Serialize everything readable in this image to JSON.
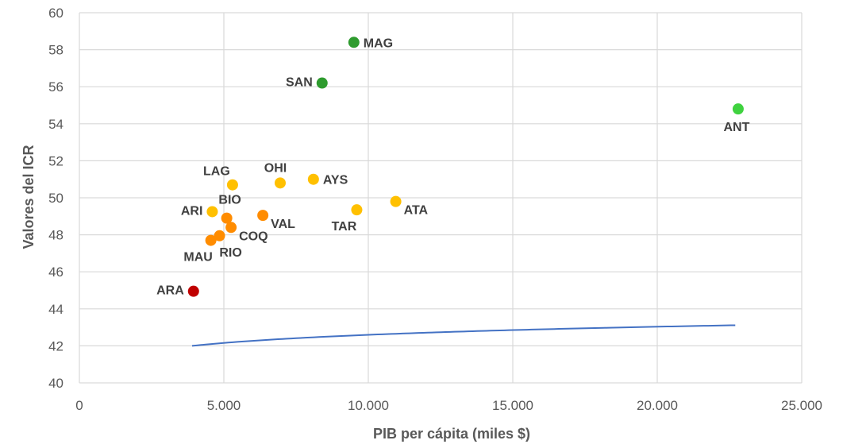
{
  "chart_data": {
    "type": "scatter",
    "xlabel": "PIB per cápita (miles $)",
    "ylabel": "Valores del ICR",
    "xlim": [
      0,
      25000
    ],
    "ylim": [
      40,
      60
    ],
    "x_ticks": [
      0,
      5000,
      10000,
      15000,
      20000,
      25000
    ],
    "x_tick_labels": [
      "0",
      "5.000",
      "10.000",
      "15.000",
      "20.000",
      "25.000"
    ],
    "y_ticks": [
      40,
      42,
      44,
      46,
      48,
      50,
      52,
      54,
      56,
      58,
      60
    ],
    "y_tick_labels": [
      "40",
      "42",
      "44",
      "46",
      "48",
      "50",
      "52",
      "54",
      "56",
      "58",
      "60"
    ],
    "grid": true,
    "legend": "none",
    "colors": {
      "dark_green": "#2e9b2e",
      "light_green": "#3fd23f",
      "yellow": "#ffc000",
      "orange": "#ff8c00",
      "red": "#c00000",
      "trend": "#4472c4"
    },
    "points": [
      {
        "label": "MAG",
        "x": 9500,
        "y": 58.4,
        "color": "dark_green",
        "label_pos": "right"
      },
      {
        "label": "SAN",
        "x": 8400,
        "y": 56.2,
        "color": "dark_green",
        "label_pos": "left"
      },
      {
        "label": "ANT",
        "x": 22800,
        "y": 54.8,
        "color": "light_green",
        "label_pos": "below"
      },
      {
        "label": "LAG",
        "x": 5300,
        "y": 50.7,
        "color": "yellow",
        "label_pos": "above-left"
      },
      {
        "label": "OHI",
        "x": 6950,
        "y": 50.8,
        "color": "yellow",
        "label_pos": "above"
      },
      {
        "label": "AYS",
        "x": 8100,
        "y": 51.0,
        "color": "yellow",
        "label_pos": "right"
      },
      {
        "label": "ATA",
        "x": 10950,
        "y": 49.8,
        "color": "yellow",
        "label_pos": "right-below"
      },
      {
        "label": "TAR",
        "x": 9600,
        "y": 49.35,
        "color": "yellow",
        "label_pos": "below-left"
      },
      {
        "label": "ARI",
        "x": 4600,
        "y": 49.25,
        "color": "yellow",
        "label_pos": "left"
      },
      {
        "label": "BIO",
        "x": 5100,
        "y": 48.9,
        "color": "orange",
        "label_pos": "above-right"
      },
      {
        "label": "VAL",
        "x": 6350,
        "y": 49.05,
        "color": "orange",
        "label_pos": "right-below"
      },
      {
        "label": "COQ",
        "x": 5250,
        "y": 48.4,
        "color": "orange",
        "label_pos": "right-below"
      },
      {
        "label": "RIO",
        "x": 4850,
        "y": 47.95,
        "color": "orange",
        "label_pos": "below-right"
      },
      {
        "label": "MAU",
        "x": 4550,
        "y": 47.7,
        "color": "orange",
        "label_pos": "below-left"
      },
      {
        "label": "ARA",
        "x": 3950,
        "y": 44.95,
        "color": "red",
        "label_pos": "left"
      }
    ],
    "trendline": {
      "type": "logarithmic",
      "x_start": 3900,
      "x_end": 22700,
      "a": 36.77,
      "b": 0.6325
    }
  }
}
